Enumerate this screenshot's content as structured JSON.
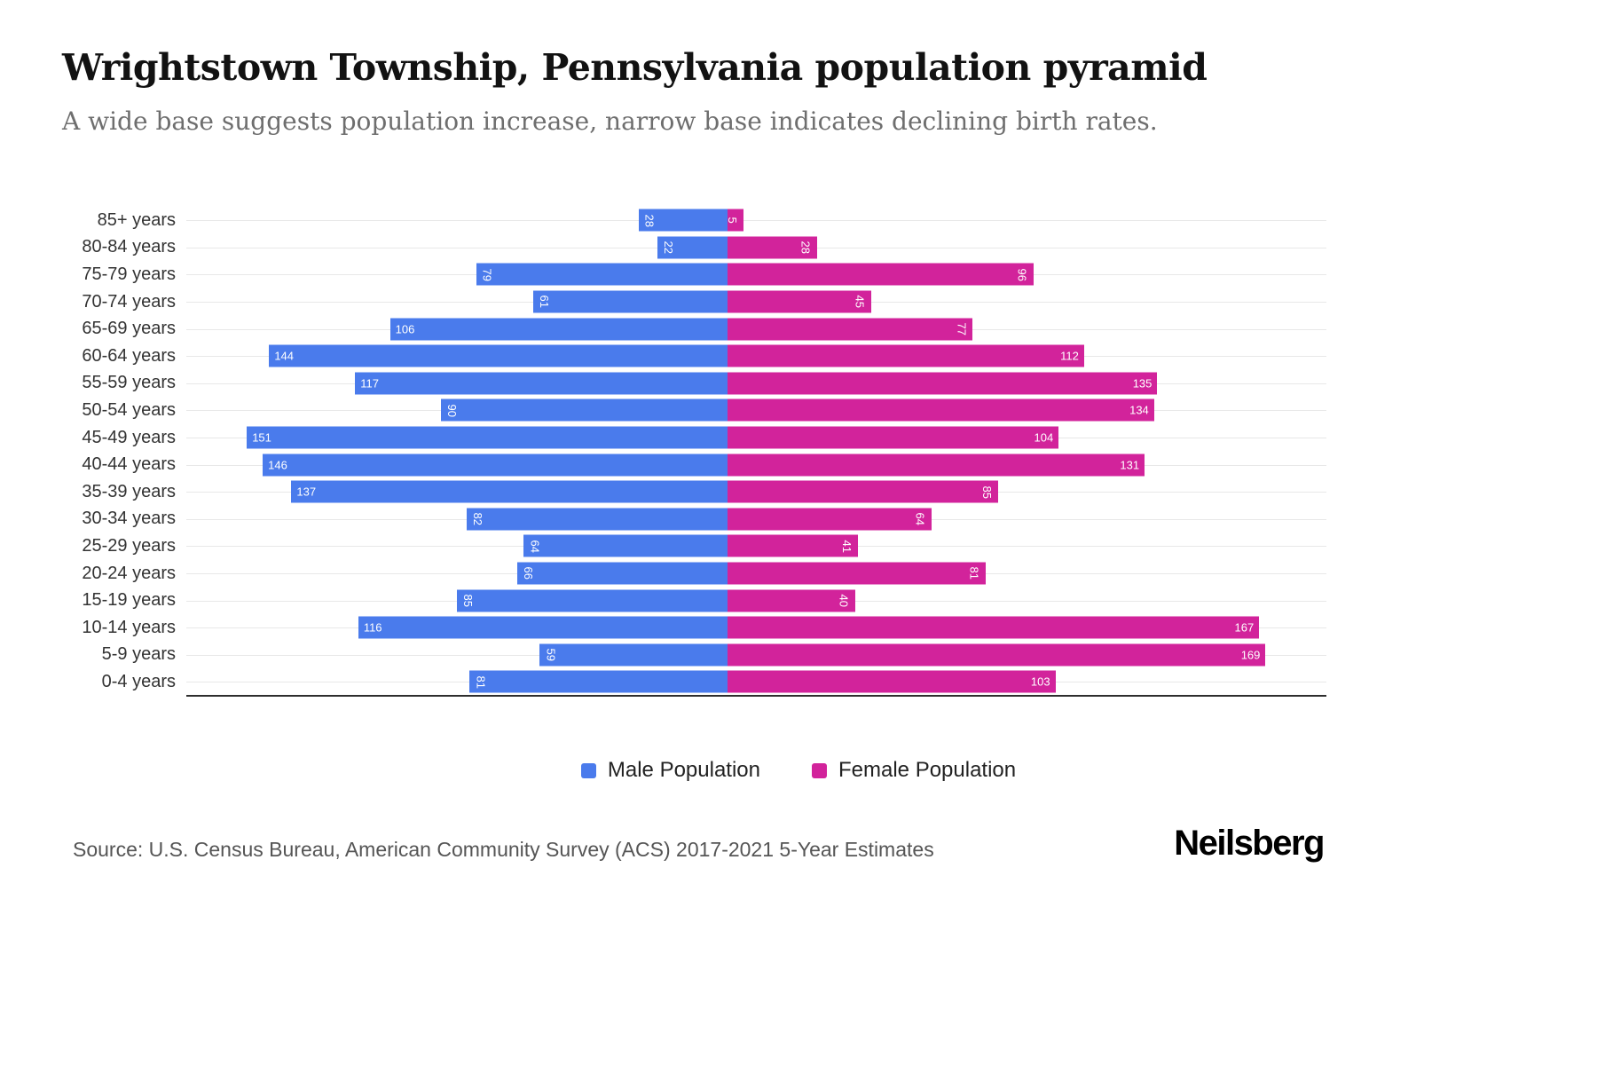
{
  "title": "Wrightstown Township, Pennsylvania population pyramid",
  "subtitle": "A wide base suggests population increase, narrow base indicates declining birth rates.",
  "legend": [
    {
      "label": "Male Population",
      "color": "#4a7bec"
    },
    {
      "label": "Female Population",
      "color": "#d2239b"
    }
  ],
  "source": "Source: U.S. Census Bureau, American Community Survey (ACS) 2017-2021 5-Year Estimates",
  "brand": "Neilsberg",
  "chart_data": {
    "type": "bar",
    "variant": "population-pyramid",
    "orientation": "horizontal",
    "title": "Wrightstown Township, Pennsylvania population pyramid",
    "categories": [
      "85+ years",
      "80-84 years",
      "75-79 years",
      "70-74 years",
      "65-69 years",
      "60-64 years",
      "55-59 years",
      "50-54 years",
      "45-49 years",
      "40-44 years",
      "35-39 years",
      "30-34 years",
      "25-29 years",
      "20-24 years",
      "15-19 years",
      "10-14 years",
      "5-9 years",
      "0-4 years"
    ],
    "series": [
      {
        "name": "Male Population",
        "side": "left",
        "color": "#4a7bec",
        "values": [
          28,
          22,
          79,
          61,
          106,
          144,
          117,
          90,
          151,
          146,
          137,
          82,
          64,
          66,
          85,
          116,
          59,
          81
        ]
      },
      {
        "name": "Female Population",
        "side": "right",
        "color": "#d2239b",
        "values": [
          5,
          28,
          96,
          45,
          77,
          112,
          135,
          134,
          104,
          131,
          85,
          64,
          41,
          81,
          40,
          167,
          169,
          103
        ]
      }
    ],
    "xlim": [
      0,
      170
    ],
    "grid": true,
    "legend_position": "bottom"
  }
}
